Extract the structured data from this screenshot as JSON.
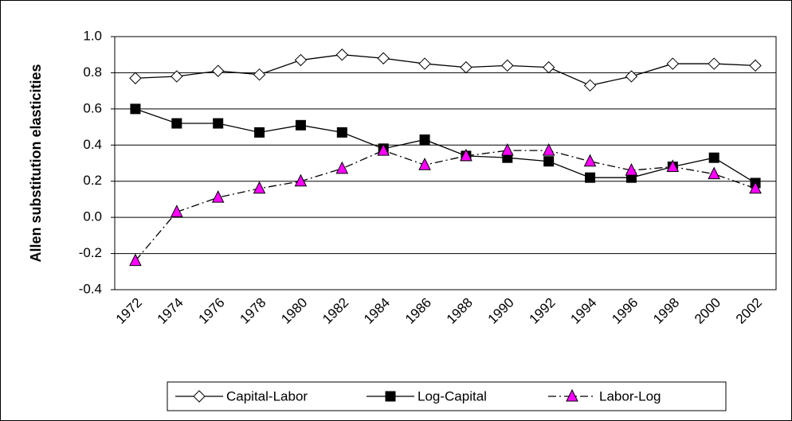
{
  "chart_data": {
    "type": "line",
    "y_label": "Allen substitution elasticities",
    "categories": [
      "1972",
      "1974",
      "1976",
      "1978",
      "1980",
      "1982",
      "1984",
      "1986",
      "1988",
      "1990",
      "1992",
      "1994",
      "1996",
      "1998",
      "2000",
      "2002"
    ],
    "series": [
      {
        "name": "Capital-Labor",
        "color": "#000000",
        "marker": "diamond",
        "marker_fill": "#ffffff",
        "line_style": "solid",
        "values": [
          0.77,
          0.78,
          0.81,
          0.79,
          0.87,
          0.9,
          0.88,
          0.85,
          0.83,
          0.84,
          0.83,
          0.73,
          0.78,
          0.85,
          0.85,
          0.84
        ]
      },
      {
        "name": "Log-Capital",
        "color": "#000000",
        "marker": "square",
        "marker_fill": "#000000",
        "line_style": "solid",
        "values": [
          0.6,
          0.52,
          0.52,
          0.47,
          0.51,
          0.47,
          0.38,
          0.43,
          0.34,
          0.33,
          0.31,
          0.22,
          0.22,
          0.28,
          0.33,
          0.19
        ]
      },
      {
        "name": "Labor-Log",
        "color": "#000000",
        "marker": "triangle",
        "marker_fill": "#ff00ff",
        "line_style": "dash-dot",
        "values": [
          -0.24,
          0.03,
          0.11,
          0.16,
          0.2,
          0.27,
          0.37,
          0.29,
          0.34,
          0.37,
          0.37,
          0.31,
          0.26,
          0.28,
          0.24,
          0.16
        ]
      }
    ],
    "ylim": [
      -0.4,
      1.0
    ],
    "yticks": [
      -0.4,
      -0.2,
      {
        "value": 0,
        "label": "0.0"
      },
      0.2,
      0.4,
      0.6,
      0.8,
      {
        "value": 1,
        "label": "1.0"
      }
    ],
    "grid": true,
    "legend": "bottom"
  }
}
